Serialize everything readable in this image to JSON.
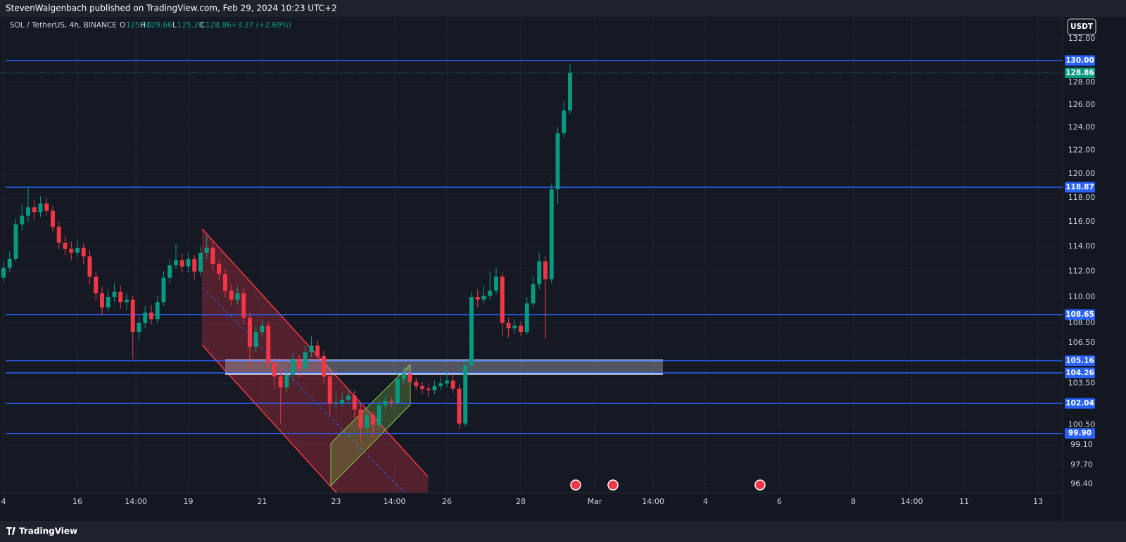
{
  "header": "StevenWalgenbach published on TradingView.com, Feb 29, 2024 10:23 UTC+2",
  "legend": {
    "symbol": "SOL / TetherUS, 4h, BINANCE",
    "ohlc": [
      {
        "label": "O",
        "value": "125.50"
      },
      {
        "label": "H",
        "value": "129.66"
      },
      {
        "label": "L",
        "value": "125.20"
      },
      {
        "label": "C",
        "value": "128.86"
      }
    ],
    "change": "+3.37 (+2.69%)"
  },
  "currency_button": "USDT",
  "footer": "TradingView",
  "chart_data": {
    "type": "candlestick",
    "log_scale": true,
    "grid": true,
    "up_color": "#089981",
    "down_color": "#f23645",
    "level_color": "#2962ff",
    "xlim": [
      -0.57,
      172
    ],
    "ylim": [
      95.8,
      134
    ],
    "xticks": [
      {
        "value": 0,
        "label": "4"
      },
      {
        "value": 12,
        "label": "16"
      },
      {
        "value": 21.5,
        "label": "14:00"
      },
      {
        "value": 30,
        "label": "19"
      },
      {
        "value": 42,
        "label": "21"
      },
      {
        "value": 54,
        "label": "23"
      },
      {
        "value": 63.5,
        "label": "14:00"
      },
      {
        "value": 72,
        "label": "26"
      },
      {
        "value": 84,
        "label": "28"
      },
      {
        "value": 96,
        "label": "Mar"
      },
      {
        "value": 105.5,
        "label": "14:00"
      },
      {
        "value": 114,
        "label": "4"
      },
      {
        "value": 126,
        "label": "6"
      },
      {
        "value": 138,
        "label": "8"
      },
      {
        "value": 147.5,
        "label": "14:00"
      },
      {
        "value": 156,
        "label": "11"
      },
      {
        "value": 168,
        "label": "13"
      }
    ],
    "yticks": [
      {
        "value": 132,
        "label": "132.00"
      },
      {
        "value": 128,
        "label": "128.00"
      },
      {
        "value": 126,
        "label": "126.00"
      },
      {
        "value": 124,
        "label": "124.00"
      },
      {
        "value": 122,
        "label": "122.00"
      },
      {
        "value": 120,
        "label": "120.00"
      },
      {
        "value": 118,
        "label": "118.00"
      },
      {
        "value": 116,
        "label": "116.00"
      },
      {
        "value": 114,
        "label": "114.00"
      },
      {
        "value": 112,
        "label": "112.00"
      },
      {
        "value": 110,
        "label": "110.00"
      },
      {
        "value": 108,
        "label": "108.00"
      },
      {
        "value": 106.5,
        "label": "106.50"
      },
      {
        "value": 103.5,
        "label": "103.50"
      },
      {
        "value": 100.5,
        "label": "100.50"
      },
      {
        "value": 99.1,
        "label": "99.10"
      },
      {
        "value": 97.7,
        "label": "97.70"
      },
      {
        "value": 96.4,
        "label": "96.40"
      }
    ],
    "levels": [
      {
        "value": 130,
        "label": "130.00"
      },
      {
        "value": 118.87,
        "label": "118.87"
      },
      {
        "value": 108.65,
        "label": "108.65"
      },
      {
        "value": 105.16,
        "label": "105.16"
      },
      {
        "value": 104.26,
        "label": "104.26"
      },
      {
        "value": 102.04,
        "label": "102.04"
      },
      {
        "value": 99.9,
        "label": "99.90"
      }
    ],
    "open": [
      111.5,
      112.3,
      113.0,
      115.8,
      116.5,
      117.2,
      116.8,
      117.5,
      116.9,
      115.6,
      114.3,
      113.8,
      113.5,
      113.9,
      113.2,
      111.6,
      110.3,
      109.2,
      110.0,
      110.4,
      109.6,
      109.8,
      107.3,
      108.0,
      108.8,
      108.3,
      109.6,
      111.5,
      112.5,
      112.9,
      112.4,
      113.0,
      112.0,
      113.5,
      113.9,
      112.6,
      111.8,
      110.5,
      109.8,
      110.3,
      108.4,
      106.2,
      107.3,
      107.8,
      105.0,
      104.0,
      103.2,
      104.1,
      105.3,
      104.6,
      105.8,
      106.3,
      105.5,
      104.0,
      102.0,
      102.1,
      102.3,
      102.6,
      101.6,
      100.3,
      101.2,
      100.5,
      101.9,
      102.2,
      102.1,
      103.8,
      104.2,
      103.6,
      103.3,
      103.1,
      103.0,
      103.3,
      103.5,
      103.7,
      103.1,
      100.6,
      104.8,
      110.0,
      109.8,
      110.1,
      110.5,
      111.6,
      108.0,
      107.6,
      107.8,
      107.3,
      109.5,
      111.0,
      112.8,
      111.4,
      118.7,
      123.5,
      125.5
    ],
    "high": [
      112.8,
      113.6,
      116.3,
      117.4,
      118.9,
      117.8,
      118.1,
      118.0,
      117.3,
      116.0,
      114.9,
      114.4,
      114.6,
      114.3,
      113.7,
      112.0,
      110.8,
      110.6,
      111.1,
      110.9,
      110.3,
      110.1,
      108.5,
      109.3,
      109.4,
      110.1,
      112.0,
      113.0,
      114.2,
      113.4,
      113.5,
      113.3,
      114.0,
      114.9,
      114.4,
      113.0,
      112.2,
      111.0,
      110.8,
      110.7,
      108.8,
      107.8,
      108.3,
      108.1,
      105.4,
      104.5,
      104.6,
      105.8,
      105.6,
      106.3,
      107.0,
      106.7,
      105.9,
      104.4,
      102.8,
      102.8,
      103.1,
      103.0,
      102.0,
      101.6,
      101.5,
      102.3,
      102.6,
      102.5,
      104.3,
      104.7,
      104.5,
      103.9,
      103.6,
      103.4,
      103.7,
      104.0,
      104.4,
      104.1,
      103.4,
      105.2,
      110.4,
      110.6,
      110.9,
      112.0,
      112.3,
      112.0,
      108.4,
      108.3,
      108.1,
      110.0,
      111.6,
      113.5,
      113.2,
      119.2,
      124.0,
      126.3,
      129.66
    ],
    "low": [
      111.2,
      112.0,
      112.8,
      115.3,
      116.0,
      116.2,
      116.4,
      116.5,
      115.2,
      113.8,
      113.3,
      112.9,
      113.1,
      112.6,
      111.0,
      109.7,
      108.6,
      108.9,
      109.6,
      109.1,
      109.0,
      105.3,
      106.7,
      107.6,
      107.9,
      108.0,
      109.3,
      111.1,
      112.2,
      111.9,
      111.9,
      111.4,
      111.6,
      113.0,
      112.1,
      111.3,
      110.0,
      109.3,
      109.4,
      107.9,
      104.5,
      105.8,
      106.9,
      104.6,
      103.1,
      100.6,
      102.8,
      103.7,
      103.9,
      104.2,
      105.4,
      105.1,
      103.5,
      101.2,
      101.6,
      101.8,
      102.0,
      101.0,
      99.3,
      99.9,
      99.6,
      100.2,
      101.6,
      101.8,
      101.9,
      103.5,
      103.2,
      103.0,
      102.7,
      102.5,
      102.7,
      103.0,
      103.2,
      102.8,
      100.2,
      100.4,
      104.5,
      109.2,
      109.5,
      109.8,
      110.2,
      107.0,
      106.9,
      107.2,
      107.0,
      107.1,
      109.2,
      110.6,
      106.8,
      111.1,
      117.5,
      123.1,
      125.2
    ],
    "close": [
      112.3,
      113.0,
      115.8,
      116.5,
      117.2,
      116.8,
      117.5,
      116.9,
      115.6,
      114.3,
      113.8,
      113.5,
      113.9,
      113.2,
      111.6,
      110.3,
      109.2,
      110.0,
      110.4,
      109.6,
      109.8,
      107.3,
      108.0,
      108.8,
      108.3,
      109.6,
      111.5,
      112.5,
      112.9,
      112.4,
      113.0,
      112.0,
      113.5,
      113.9,
      112.6,
      111.8,
      110.5,
      109.8,
      110.3,
      108.4,
      106.2,
      107.3,
      107.8,
      105.0,
      104.0,
      103.2,
      104.1,
      105.3,
      104.6,
      105.8,
      106.3,
      105.5,
      104.0,
      102.0,
      102.1,
      102.3,
      102.6,
      101.6,
      100.3,
      101.2,
      100.5,
      101.9,
      102.2,
      102.1,
      103.8,
      104.2,
      103.6,
      103.3,
      103.1,
      103.0,
      103.3,
      103.5,
      103.7,
      103.1,
      100.6,
      104.8,
      110.0,
      109.8,
      110.1,
      110.5,
      111.6,
      108.0,
      107.6,
      107.8,
      107.3,
      109.5,
      111.0,
      112.8,
      111.4,
      118.7,
      123.5,
      125.5,
      128.86
    ]
  }
}
